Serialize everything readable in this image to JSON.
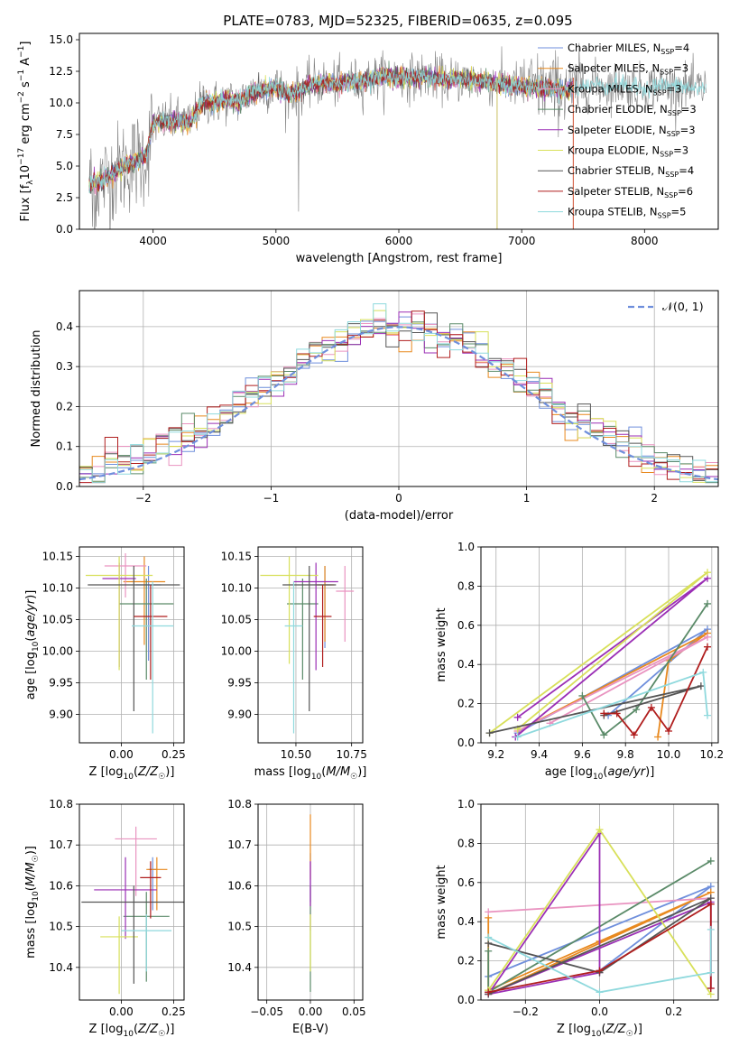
{
  "figure": {
    "title": "PLATE=0783, MJD=52325, FIBERID=0635, z=0.095"
  },
  "colors": {
    "models": [
      "#6f8fdc",
      "#e8891f",
      "#e993c0",
      "#5a8a68",
      "#9b2fb5",
      "#d8e05a",
      "#555555",
      "#b01e1e",
      "#8fd9dd"
    ],
    "data": "#808080",
    "grid": "#b0b0b0"
  },
  "chart_data": [
    {
      "id": "spectrum",
      "type": "line",
      "title": "PLATE=0783, MJD=52325, FIBERID=0635, z=0.095",
      "xlabel": "wavelength [Angstrom, rest frame]",
      "ylabel": "Flux [f_λ 10^-17 erg cm^-2 s^-1 A^-1]",
      "xlim": [
        3400,
        8600
      ],
      "ylim": [
        0,
        15.5
      ],
      "xticks": [
        4000,
        5000,
        6000,
        7000,
        8000
      ],
      "yticks": [
        0.0,
        2.5,
        5.0,
        7.5,
        10.0,
        12.5,
        15.0
      ],
      "grid": false,
      "legend_position": "right",
      "continuum": {
        "x": [
          3480,
          3600,
          3700,
          3800,
          3900,
          3950,
          4000,
          4100,
          4200,
          4300,
          4400,
          4500,
          4600,
          4700,
          4800,
          4900,
          5000,
          5100,
          5200,
          5300,
          5400,
          5500,
          5600,
          5700,
          5800,
          5900,
          6000,
          6100,
          6200,
          6300,
          6400,
          6500,
          6600,
          6700,
          6800,
          6900,
          7000,
          7100,
          7200,
          7300,
          7400,
          7500,
          7600,
          7700,
          7800,
          7900,
          8000,
          8100,
          8200,
          8300,
          8400,
          8500
        ],
        "y": [
          3.6,
          3.9,
          4.5,
          5.2,
          5.6,
          6.0,
          8.4,
          8.5,
          8.6,
          8.4,
          10.1,
          10.0,
          10.2,
          10.1,
          10.8,
          11.0,
          11.3,
          10.6,
          11.0,
          11.5,
          11.6,
          11.5,
          11.7,
          11.6,
          12.0,
          12.1,
          12.0,
          12.0,
          12.1,
          12.0,
          11.8,
          11.9,
          11.8,
          11.6,
          11.6,
          11.4,
          11.4,
          11.2,
          11.2,
          11.1,
          11.0,
          11.3,
          11.5,
          11.3,
          11.5,
          11.2,
          11.2,
          11.4,
          11.3,
          11.3,
          11.1,
          11.2
        ]
      },
      "series": [
        {
          "name": "Chabrier MILES, N_SSP=4",
          "label_main": "Chabrier MILES, N",
          "ssp_count": "=4"
        },
        {
          "name": "Salpeter MILES, N_SSP=3",
          "label_main": "Salpeter MILES, N",
          "ssp_count": "=3"
        },
        {
          "name": "Kroupa MILES, N_SSP=3",
          "label_main": "Kroupa MILES, N",
          "ssp_count": "=3"
        },
        {
          "name": "Chabrier ELODIE, N_SSP=3",
          "label_main": "Chabrier ELODIE, N",
          "ssp_count": "=3"
        },
        {
          "name": "Salpeter ELODIE, N_SSP=3",
          "label_main": "Salpeter ELODIE, N",
          "ssp_count": "=3"
        },
        {
          "name": "Kroupa ELODIE, N_SSP=3",
          "label_main": "Kroupa ELODIE, N",
          "ssp_count": "=3"
        },
        {
          "name": "Chabrier STELIB, N_SSP=4",
          "label_main": "Chabrier STELIB, N",
          "ssp_count": "=4"
        },
        {
          "name": "Salpeter STELIB, N_SSP=6",
          "label_main": "Salpeter STELIB, N",
          "ssp_count": "=6"
        },
        {
          "name": "Kroupa STELIB, N_SSP=5",
          "label_main": "Kroupa STELIB, N",
          "ssp_count": "=5"
        }
      ],
      "subscript": "SSP"
    },
    {
      "id": "residuals",
      "type": "histogram",
      "xlabel": "(data-model)/error",
      "ylabel": "Normed distribution",
      "xlim": [
        -2.5,
        2.5
      ],
      "ylim": [
        0,
        0.49
      ],
      "xticks": [
        -2,
        -1,
        0,
        1,
        2
      ],
      "yticks": [
        0.0,
        0.1,
        0.2,
        0.3,
        0.4
      ],
      "grid": true,
      "legend": "𝒩(0, 1)",
      "legend_position": "top-right",
      "bin_edges_range": [
        -2.5,
        2.5
      ],
      "n_bins": 50,
      "reference": "normal(0,1)"
    },
    {
      "id": "age_vs_Z",
      "type": "scatter",
      "xlabel": "Z [log10(Z/Z☉)]",
      "ylabel": "age  [log10(age/yr)]",
      "xlim": [
        -0.2,
        0.3
      ],
      "ylim": [
        9.855,
        10.165
      ],
      "xticks": [
        0.0,
        0.25
      ],
      "yticks": [
        9.9,
        9.95,
        10.0,
        10.05,
        10.1,
        10.15
      ],
      "grid": true,
      "points": [
        {
          "x": 0.13,
          "y": 10.105,
          "xerr": 0.06,
          "yerr": [
            0.12,
            0.03
          ]
        },
        {
          "x": 0.11,
          "y": 10.11,
          "xerr": 0.1,
          "yerr": [
            0.1,
            0.04
          ]
        },
        {
          "x": 0.02,
          "y": 10.135,
          "xerr": 0.1,
          "yerr": [
            0.05,
            0.02
          ]
        },
        {
          "x": 0.12,
          "y": 10.075,
          "xerr": 0.13,
          "yerr": [
            0.12,
            0.04
          ]
        },
        {
          "x": -0.01,
          "y": 10.115,
          "xerr": 0.08,
          "yerr": [
            0.14,
            0.025
          ]
        },
        {
          "x": -0.01,
          "y": 10.12,
          "xerr": 0.16,
          "yerr": [
            0.15,
            0.03
          ]
        },
        {
          "x": 0.06,
          "y": 10.105,
          "xerr": 0.22,
          "yerr": [
            0.2,
            0.03
          ]
        },
        {
          "x": 0.14,
          "y": 10.055,
          "xerr": 0.08,
          "yerr": [
            0.1,
            0.05
          ]
        },
        {
          "x": 0.15,
          "y": 10.04,
          "xerr": 0.1,
          "yerr": [
            0.17,
            0.07
          ]
        }
      ]
    },
    {
      "id": "age_vs_mass",
      "type": "scatter",
      "xlabel": "mass [log10(M/M☉)]",
      "ylabel": "",
      "xlim": [
        10.33,
        10.8
      ],
      "ylim": [
        9.855,
        10.165
      ],
      "xticks": [
        10.5,
        10.75
      ],
      "yticks": [
        9.9,
        9.95,
        10.0,
        10.05,
        10.1,
        10.15
      ],
      "grid": true,
      "points": [
        {
          "x": 10.63,
          "y": 10.105,
          "xerr": 0.03,
          "yerr": [
            0.1,
            0.03
          ]
        },
        {
          "x": 10.63,
          "y": 10.105,
          "xerr": 0.04,
          "yerr": [
            0.09,
            0.03
          ]
        },
        {
          "x": 10.72,
          "y": 10.095,
          "xerr": 0.04,
          "yerr": [
            0.08,
            0.04
          ]
        },
        {
          "x": 10.53,
          "y": 10.075,
          "xerr": 0.07,
          "yerr": [
            0.12,
            0.04
          ]
        },
        {
          "x": 10.59,
          "y": 10.11,
          "xerr": 0.1,
          "yerr": [
            0.14,
            0.03
          ]
        },
        {
          "x": 10.47,
          "y": 10.12,
          "xerr": 0.13,
          "yerr": [
            0.14,
            0.03
          ]
        },
        {
          "x": 10.56,
          "y": 10.105,
          "xerr": 0.12,
          "yerr": [
            0.2,
            0.03
          ]
        },
        {
          "x": 10.62,
          "y": 10.055,
          "xerr": 0.04,
          "yerr": [
            0.08,
            0.05
          ]
        },
        {
          "x": 10.49,
          "y": 10.04,
          "xerr": 0.04,
          "yerr": [
            0.17,
            0.07
          ]
        }
      ]
    },
    {
      "id": "weight_vs_age",
      "type": "line",
      "xlabel": "age  [log10(age/yr)]",
      "ylabel": "mass weight",
      "xlim": [
        9.13,
        10.23
      ],
      "ylim": [
        0,
        1
      ],
      "xticks": [
        9.2,
        9.4,
        9.6,
        9.8,
        10.0,
        10.2
      ],
      "yticks": [
        0.0,
        0.2,
        0.4,
        0.6,
        0.8,
        1.0
      ],
      "grid": true,
      "series": [
        {
          "x": [
            9.3,
            10.18,
            9.72
          ],
          "y": [
            0.05,
            0.58,
            0.14
          ]
        },
        {
          "x": [
            9.3,
            10.18,
            10.0,
            9.95
          ],
          "y": [
            0.06,
            0.56,
            0.42,
            0.03
          ]
        },
        {
          "x": [
            9.3,
            10.18,
            9.45
          ],
          "y": [
            0.06,
            0.54,
            0.1
          ]
        },
        {
          "x": [
            9.6,
            9.7,
            9.85,
            10.18
          ],
          "y": [
            0.24,
            0.04,
            0.17,
            0.71
          ]
        },
        {
          "x": [
            9.29,
            10.18,
            9.3
          ],
          "y": [
            0.03,
            0.84,
            0.13
          ]
        },
        {
          "x": [
            9.17,
            10.18,
            9.3
          ],
          "y": [
            0.05,
            0.87,
            0.07
          ]
        },
        {
          "x": [
            9.17,
            10.15,
            9.7
          ],
          "y": [
            0.05,
            0.29,
            0.14
          ]
        },
        {
          "x": [
            9.7,
            9.76,
            9.84,
            9.92,
            10.0,
            10.18
          ],
          "y": [
            0.15,
            0.15,
            0.04,
            0.18,
            0.06,
            0.49
          ]
        },
        {
          "x": [
            9.3,
            10.16,
            10.18
          ],
          "y": [
            0.03,
            0.36,
            0.14
          ]
        }
      ]
    },
    {
      "id": "mass_vs_Z",
      "type": "scatter",
      "xlabel": "Z [log10(Z/Z☉)]",
      "ylabel": "mass [log10(M/M☉)]",
      "xlim": [
        -0.2,
        0.3
      ],
      "ylim": [
        10.32,
        10.8
      ],
      "xticks": [
        0.0,
        0.25
      ],
      "yticks": [
        10.4,
        10.5,
        10.6,
        10.7,
        10.8
      ],
      "grid": true,
      "points": [
        {
          "x": 0.15,
          "y": 10.64,
          "xerr": 0.02,
          "yerr": [
            0.1,
            0.03
          ]
        },
        {
          "x": 0.17,
          "y": 10.64,
          "xerr": 0.05,
          "yerr": [
            0.1,
            0.03
          ]
        },
        {
          "x": 0.07,
          "y": 10.715,
          "xerr": 0.1,
          "yerr": [
            0.14,
            0.03
          ]
        },
        {
          "x": 0.12,
          "y": 10.525,
          "xerr": 0.11,
          "yerr": [
            0.16,
            0.06
          ]
        },
        {
          "x": 0.02,
          "y": 10.59,
          "xerr": 0.15,
          "yerr": [
            0.12,
            0.08
          ]
        },
        {
          "x": -0.01,
          "y": 10.475,
          "xerr": 0.09,
          "yerr": [
            0.14,
            0.05
          ]
        },
        {
          "x": 0.06,
          "y": 10.56,
          "xerr": 0.25,
          "yerr": [
            0.2,
            0.04
          ]
        },
        {
          "x": 0.14,
          "y": 10.62,
          "xerr": 0.05,
          "yerr": [
            0.1,
            0.04
          ]
        },
        {
          "x": 0.12,
          "y": 10.49,
          "xerr": 0.12,
          "yerr": [
            0.1,
            0.04
          ]
        }
      ]
    },
    {
      "id": "mass_vs_ebv",
      "type": "scatter",
      "xlabel": "E(B-V)",
      "ylabel": "",
      "xlim": [
        -0.06,
        0.06
      ],
      "ylim": [
        10.32,
        10.8
      ],
      "xticks": [
        -0.05,
        0.0,
        0.05
      ],
      "yticks": [
        10.4,
        10.5,
        10.6,
        10.7,
        10.8
      ],
      "grid": true,
      "points": [
        {
          "x": 0.0,
          "y": 10.64,
          "xerr": 0.0,
          "yerr": [
            0.08,
            0.04
          ]
        },
        {
          "x": 0.0,
          "y": 10.715,
          "xerr": 0.0,
          "yerr": [
            0.1,
            0.06
          ]
        },
        {
          "x": 0.0,
          "y": 10.59,
          "xerr": 0.0,
          "yerr": [
            0.1,
            0.07
          ]
        },
        {
          "x": 0.0,
          "y": 10.5,
          "xerr": 0.0,
          "yerr": [
            0.16,
            0.1
          ]
        },
        {
          "x": 0.0,
          "y": 10.6,
          "xerr": 0.0,
          "yerr": [
            0.05,
            0.06
          ]
        },
        {
          "x": 0.0,
          "y": 10.49,
          "xerr": 0.0,
          "yerr": [
            0.1,
            0.04
          ]
        }
      ]
    },
    {
      "id": "weight_vs_Z",
      "type": "line",
      "xlabel": "Z [log10(Z/Z☉)]",
      "ylabel": "mass weight",
      "xlim": [
        -0.32,
        0.32
      ],
      "ylim": [
        0,
        1
      ],
      "xticks": [
        -0.2,
        0.0,
        0.2
      ],
      "yticks": [
        0.0,
        0.2,
        0.4,
        0.6,
        0.8,
        1.0
      ],
      "grid": true,
      "series": [
        {
          "x": [
            -0.3,
            0.3,
            0.0
          ],
          "y": [
            0.12,
            0.58,
            0.15
          ]
        },
        {
          "x": [
            -0.3,
            -0.3,
            0.3,
            0.0,
            -0.3
          ],
          "y": [
            0.42,
            0.03,
            0.55,
            0.3,
            0.05
          ]
        },
        {
          "x": [
            -0.3,
            0.3
          ],
          "y": [
            0.45,
            0.52
          ]
        },
        {
          "x": [
            -0.3,
            -0.3,
            0.3
          ],
          "y": [
            0.25,
            0.04,
            0.71
          ]
        },
        {
          "x": [
            -0.3,
            0.0,
            0.0,
            -0.3,
            0.3,
            0.3
          ],
          "y": [
            0.03,
            0.85,
            0.14,
            0.03,
            0.5,
            0.06
          ]
        },
        {
          "x": [
            -0.3,
            0.0,
            0.3
          ],
          "y": [
            0.05,
            0.87,
            0.03
          ]
        },
        {
          "x": [
            -0.3,
            0.0,
            0.3,
            -0.3
          ],
          "y": [
            0.29,
            0.14,
            0.52,
            0.03
          ]
        },
        {
          "x": [
            -0.3,
            0.0,
            0.3,
            0.3
          ],
          "y": [
            0.04,
            0.15,
            0.49,
            0.06
          ]
        },
        {
          "x": [
            -0.3,
            0.0,
            0.3,
            0.3
          ],
          "y": [
            0.32,
            0.04,
            0.14,
            0.36
          ]
        }
      ]
    }
  ]
}
